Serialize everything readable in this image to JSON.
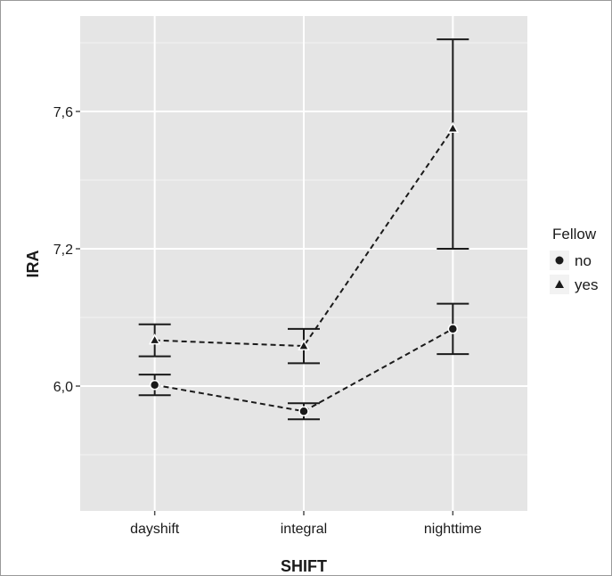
{
  "chart_data": {
    "type": "line",
    "xlabel": "SHIFT",
    "ylabel": "IRA",
    "categories": [
      "dayshift",
      "integral",
      "nighttime"
    ],
    "y_ticks": [
      6.0,
      7.2,
      7.6
    ],
    "y_tick_labels": [
      "6,0",
      "7,2",
      "7,6"
    ],
    "ylim": [
      5.65,
      7.87
    ],
    "grid": true,
    "legend": {
      "title": "Fellow",
      "placement": "right",
      "entries": [
        {
          "label": "no",
          "marker": "circle"
        },
        {
          "label": "yes",
          "marker": "triangle"
        }
      ]
    },
    "series": [
      {
        "name": "no",
        "marker": "circle",
        "values": [
          6.01,
          5.78,
          6.5
        ],
        "error_low": [
          5.92,
          5.71,
          6.28
        ],
        "error_high": [
          6.1,
          5.85,
          6.72
        ]
      },
      {
        "name": "yes",
        "marker": "triangle",
        "values": [
          6.4,
          6.35,
          7.55
        ],
        "error_low": [
          6.26,
          6.2,
          7.2
        ],
        "error_high": [
          6.54,
          6.5,
          7.81
        ]
      }
    ],
    "colors": {
      "panel": "#e5e5e5",
      "grid_major": "#ffffff",
      "grid_minor": "#f2f2f2",
      "series": "#1a1a1a"
    }
  }
}
